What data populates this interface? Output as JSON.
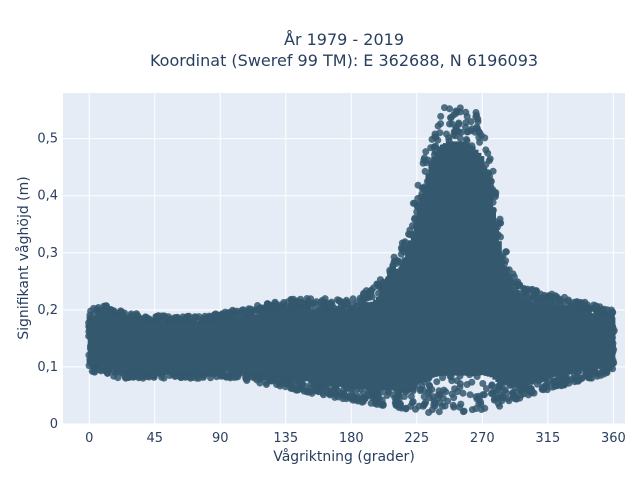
{
  "chart_data": {
    "type": "scatter",
    "title_line1": "År 1979 - 2019",
    "title_line2": "Koordinat (Sweref 99 TM): E 362688, N 6196093",
    "xlabel": "Vågriktning (grader)",
    "ylabel": "Signifikant våghöjd (m)",
    "xlim": [
      -18,
      368
    ],
    "ylim": [
      0,
      0.58
    ],
    "x_ticks": [
      0,
      45,
      90,
      135,
      180,
      225,
      270,
      315,
      360
    ],
    "x_tick_labels": [
      "0",
      "45",
      "90",
      "135",
      "180",
      "225",
      "270",
      "315",
      "360"
    ],
    "y_ticks": [
      0,
      0.1,
      0.2,
      0.3,
      0.4,
      0.5
    ],
    "y_tick_labels": [
      "0",
      "0,1",
      "0,2",
      "0,3",
      "0,4",
      "0,5"
    ],
    "grid": true,
    "marker_color": "#34586e",
    "plot_background": "#e5ecf6",
    "envelope": {
      "x": [
        0,
        10,
        20,
        40,
        60,
        80,
        100,
        120,
        140,
        160,
        180,
        195,
        205,
        215,
        222,
        228,
        234,
        240,
        246,
        252,
        258,
        264,
        270,
        276,
        282,
        288,
        294,
        300,
        315,
        330,
        345,
        360
      ],
      "y_low": [
        0.09,
        0.09,
        0.08,
        0.08,
        0.08,
        0.08,
        0.08,
        0.07,
        0.06,
        0.05,
        0.04,
        0.035,
        0.03,
        0.025,
        0.02,
        0.02,
        0.02,
        0.02,
        0.02,
        0.02,
        0.02,
        0.02,
        0.025,
        0.03,
        0.03,
        0.04,
        0.04,
        0.05,
        0.06,
        0.07,
        0.08,
        0.09
      ],
      "y_high": [
        0.2,
        0.21,
        0.2,
        0.19,
        0.19,
        0.19,
        0.2,
        0.21,
        0.22,
        0.22,
        0.22,
        0.24,
        0.27,
        0.32,
        0.38,
        0.45,
        0.52,
        0.55,
        0.56,
        0.56,
        0.56,
        0.55,
        0.53,
        0.46,
        0.36,
        0.28,
        0.25,
        0.24,
        0.23,
        0.22,
        0.21,
        0.2
      ]
    }
  }
}
